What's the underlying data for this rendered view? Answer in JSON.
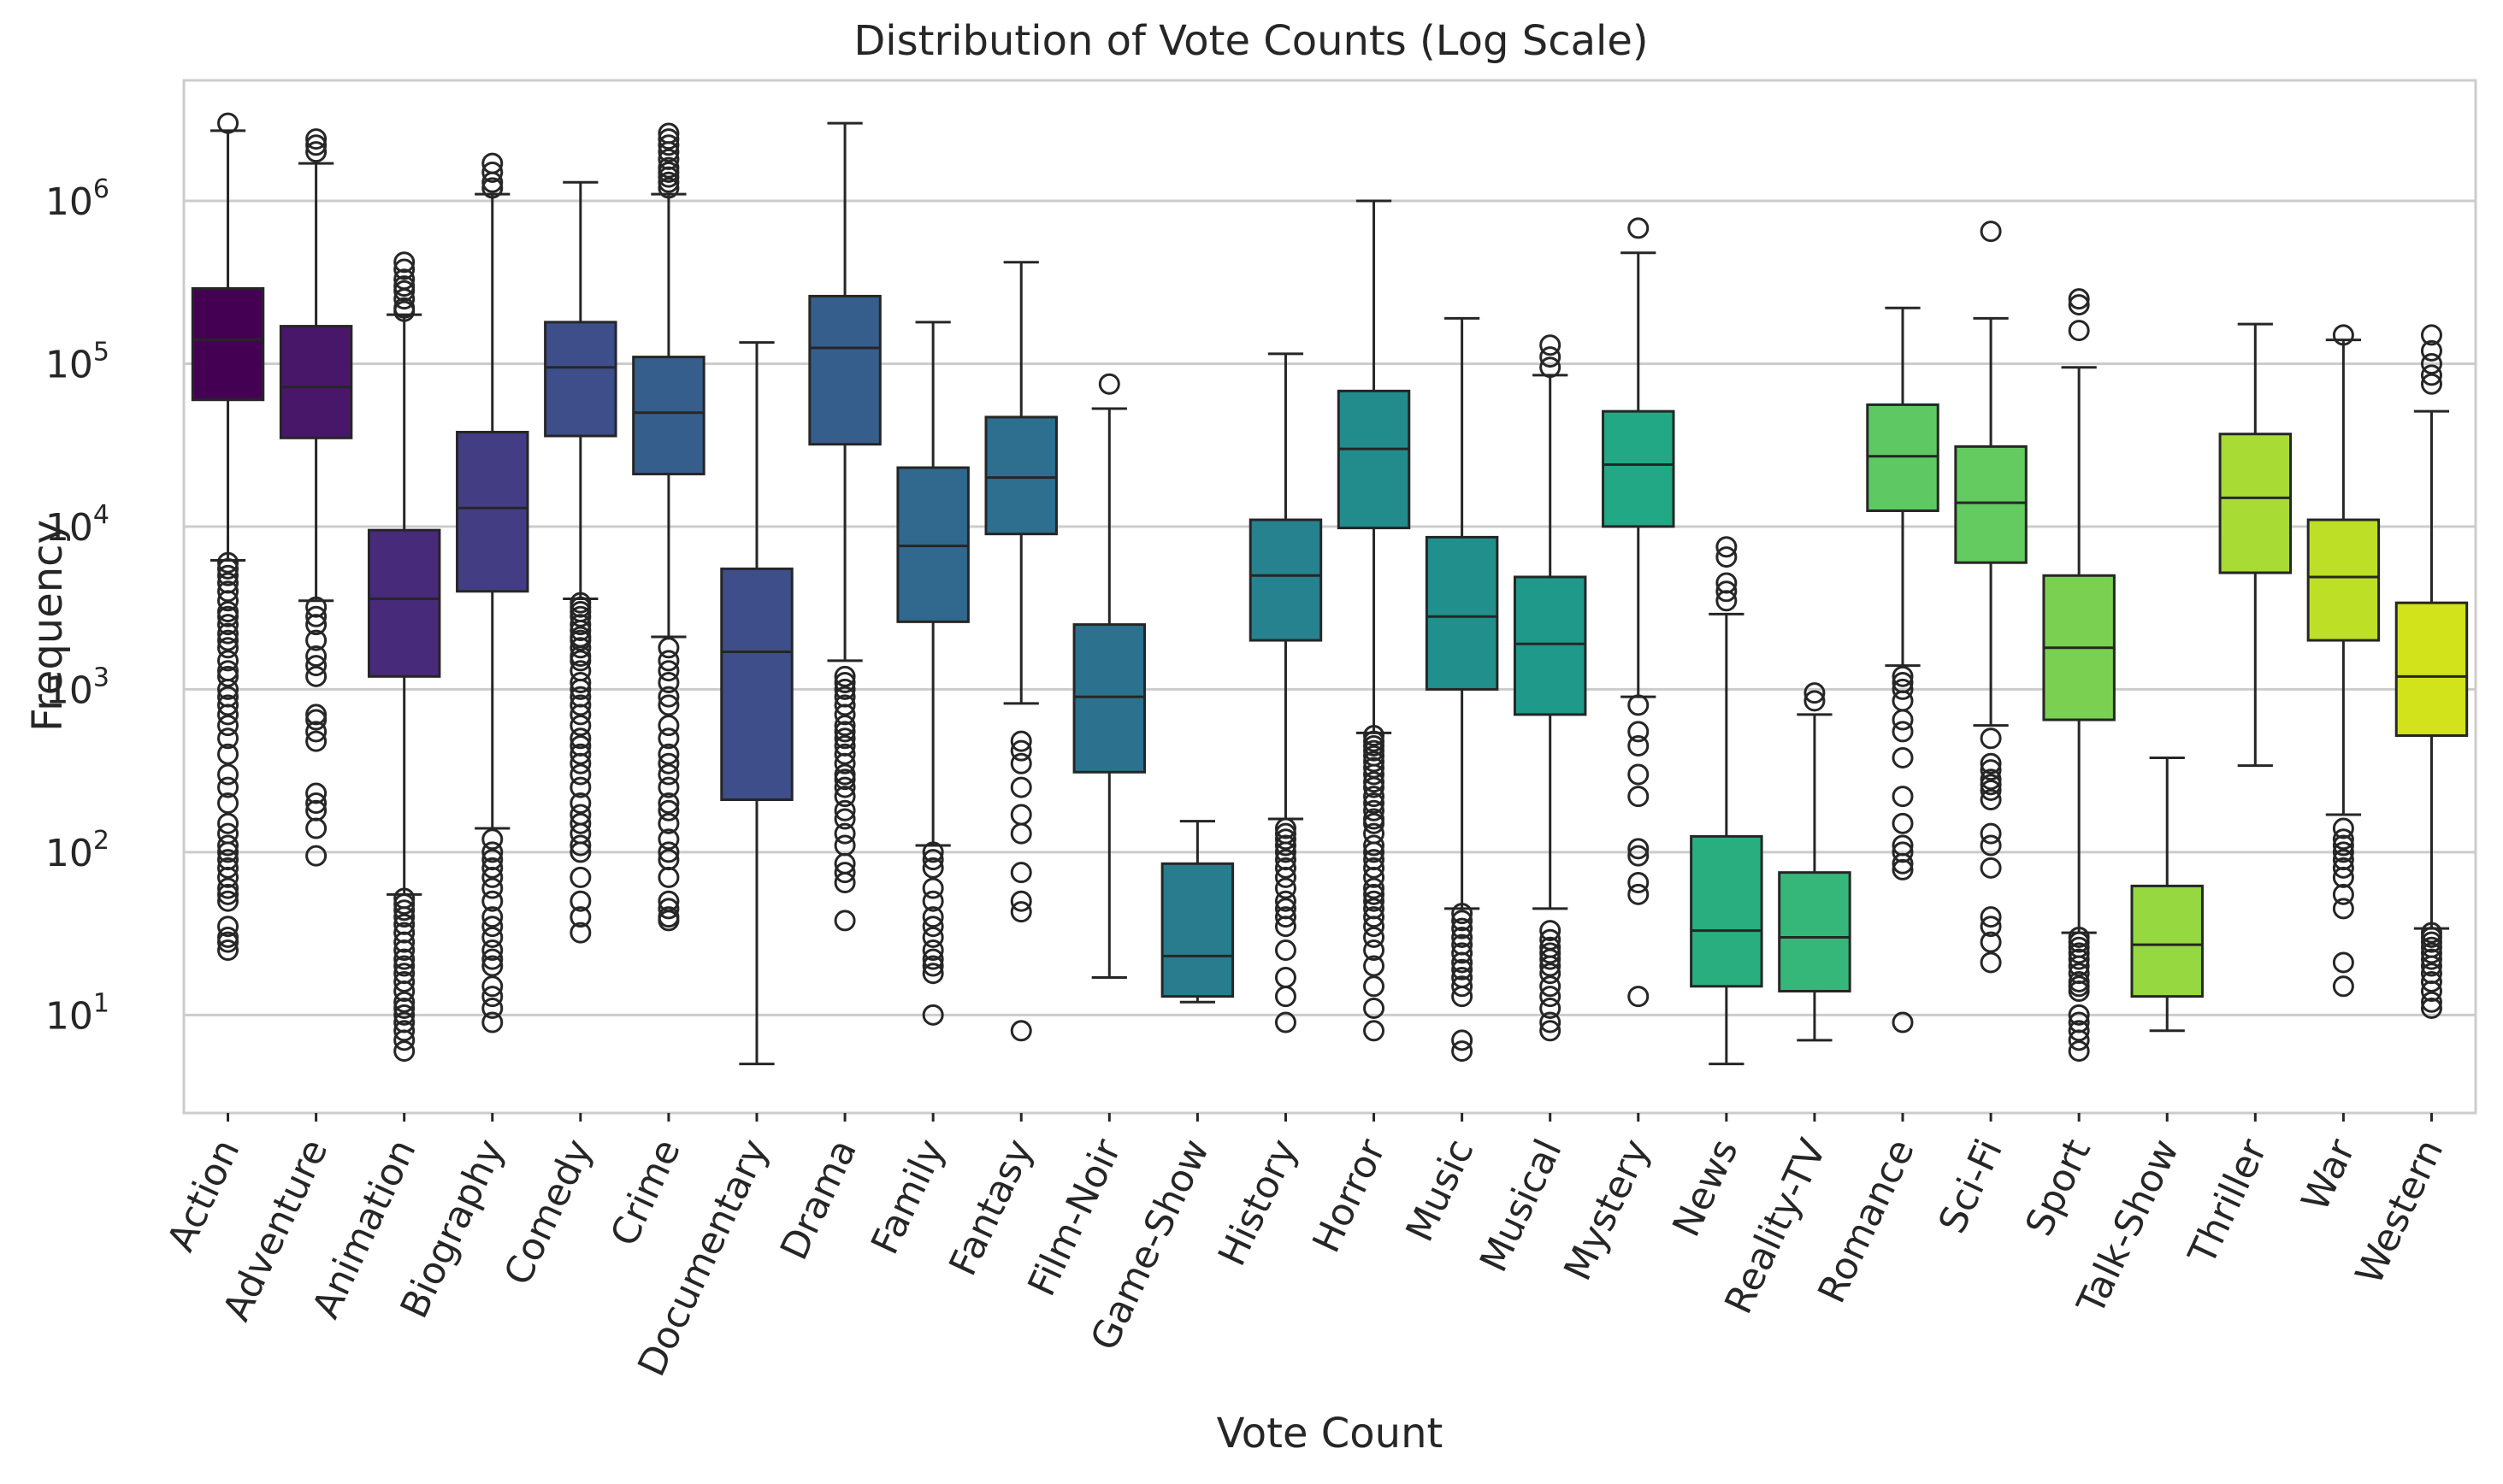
{
  "chart_data": {
    "type": "boxplot",
    "title": "Distribution of Vote Counts (Log Scale)",
    "xlabel": "Vote Count",
    "ylabel": "Frequency",
    "yscale": "log",
    "ylim": [
      2.5,
      5500000
    ],
    "yticks": [
      {
        "value": 10,
        "base": "10",
        "exp": "1"
      },
      {
        "value": 100,
        "base": "10",
        "exp": "2"
      },
      {
        "value": 1000,
        "base": "10",
        "exp": "3"
      },
      {
        "value": 10000,
        "base": "10",
        "exp": "4"
      },
      {
        "value": 100000,
        "base": "10",
        "exp": "5"
      },
      {
        "value": 1000000,
        "base": "10",
        "exp": "6"
      }
    ],
    "grid": true,
    "legend": "none",
    "categories": [
      "Action",
      "Adventure",
      "Animation",
      "Biography",
      "Comedy",
      "Crime",
      "Documentary",
      "Drama",
      "Family",
      "Fantasy",
      "Film-Noir",
      "Game-Show",
      "History",
      "Horror",
      "Music",
      "Musical",
      "Mystery",
      "News",
      "Reality-TV",
      "Romance",
      "Sci-Fi",
      "Sport",
      "Talk-Show",
      "Thriller",
      "War",
      "Western"
    ],
    "boxes": [
      {
        "category": "Action",
        "color": "#440154",
        "whisker_low": 6200,
        "q1": 60000,
        "median": 140000,
        "q3": 290000,
        "whisker_high": 2700000,
        "fliers": [
          3000000,
          6000,
          5500,
          5000,
          4500,
          4000,
          3500,
          3000,
          2800,
          2500,
          2200,
          2000,
          1800,
          1500,
          1300,
          1200,
          1000,
          900,
          800,
          700,
          600,
          500,
          400,
          300,
          250,
          200,
          150,
          130,
          110,
          100,
          90,
          80,
          70,
          60,
          55,
          50,
          35,
          30,
          28,
          25
        ]
      },
      {
        "category": "Adventure",
        "color": "#481769",
        "whisker_low": 3500,
        "q1": 35000,
        "median": 72000,
        "q3": 170000,
        "whisker_high": 1700000,
        "fliers": [
          2400000,
          2200000,
          2000000,
          3200,
          2800,
          2500,
          2000,
          1600,
          1400,
          1200,
          700,
          650,
          550,
          480,
          230,
          200,
          180,
          140,
          95
        ]
      },
      {
        "category": "Animation",
        "color": "#472a7a",
        "whisker_low": 55,
        "q1": 1200,
        "median": 3600,
        "q3": 9500,
        "whisker_high": 200000,
        "fliers": [
          420000,
          380000,
          330000,
          300000,
          280000,
          250000,
          220000,
          210000,
          52,
          48,
          44,
          40,
          36,
          32,
          28,
          25,
          22,
          20,
          18,
          16,
          14,
          12,
          11,
          10,
          9,
          8,
          7,
          6
        ]
      },
      {
        "category": "Biography",
        "color": "#433d84",
        "whisker_low": 140,
        "q1": 4000,
        "median": 13000,
        "q3": 38000,
        "whisker_high": 1100000,
        "fliers": [
          1700000,
          1500000,
          1300000,
          1200000,
          120,
          100,
          90,
          80,
          70,
          60,
          50,
          40,
          35,
          30,
          25,
          22,
          20,
          15,
          13,
          11,
          9
        ]
      },
      {
        "category": "Comedy",
        "color": "#3d4e8a",
        "whisker_low": 3600,
        "q1": 36000,
        "median": 95000,
        "q3": 180000,
        "whisker_high": 1300000,
        "fliers": [
          3400,
          3200,
          3000,
          2800,
          2500,
          2300,
          2100,
          2000,
          1800,
          1600,
          1500,
          1300,
          1100,
          1000,
          900,
          800,
          700,
          600,
          500,
          450,
          400,
          350,
          300,
          250,
          200,
          170,
          150,
          130,
          110,
          100,
          70,
          50,
          40,
          32
        ]
      },
      {
        "category": "Crime",
        "color": "#355e8d",
        "whisker_low": 2100,
        "q1": 21000,
        "median": 50000,
        "q3": 110000,
        "whisker_high": 1100000,
        "fliers": [
          2600000,
          2400000,
          2200000,
          2000000,
          1800000,
          1600000,
          1500000,
          1400000,
          1300000,
          1200000,
          1800,
          1500,
          1300,
          1100,
          900,
          800,
          600,
          500,
          400,
          350,
          300,
          250,
          200,
          180,
          150,
          120,
          100,
          90,
          70,
          50,
          45,
          40,
          38
        ]
      },
      {
        "category": "Documentary",
        "color": "#3d4e8a",
        "whisker_low": 5,
        "q1": 210,
        "median": 1700,
        "q3": 5500,
        "whisker_high": 135000,
        "fliers": []
      },
      {
        "category": "Drama",
        "color": "#355e8d",
        "whisker_low": 1500,
        "q1": 32000,
        "median": 125000,
        "q3": 260000,
        "whisker_high": 3000000,
        "fliers": [
          1200,
          1100,
          1000,
          900,
          800,
          700,
          600,
          550,
          500,
          450,
          400,
          350,
          300,
          280,
          250,
          220,
          180,
          160,
          130,
          110,
          85,
          75,
          65,
          38
        ]
      },
      {
        "category": "Family",
        "color": "#31688e",
        "whisker_low": 110,
        "q1": 2600,
        "median": 7600,
        "q3": 23000,
        "whisker_high": 180000,
        "fliers": [
          100,
          90,
          80,
          60,
          50,
          40,
          35,
          30,
          25,
          22,
          20,
          18,
          10
        ]
      },
      {
        "category": "Fantasy",
        "color": "#2e6e8e",
        "whisker_low": 820,
        "q1": 9000,
        "median": 20000,
        "q3": 47000,
        "whisker_high": 420000,
        "fliers": [
          480,
          420,
          350,
          250,
          170,
          130,
          75,
          50,
          43,
          8
        ]
      },
      {
        "category": "Film-Noir",
        "color": "#2c728e",
        "whisker_low": 17,
        "q1": 310,
        "median": 900,
        "q3": 2500,
        "whisker_high": 53000,
        "fliers": [
          75000
        ]
      },
      {
        "category": "Game-Show",
        "color": "#287c8e",
        "whisker_low": 12,
        "q1": 13,
        "median": 23,
        "q3": 85,
        "whisker_high": 155,
        "fliers": []
      },
      {
        "category": "History",
        "color": "#26828e",
        "whisker_low": 160,
        "q1": 2000,
        "median": 5000,
        "q3": 11000,
        "whisker_high": 115000,
        "fliers": [
          140,
          130,
          120,
          110,
          100,
          90,
          80,
          70,
          60,
          50,
          45,
          40,
          35,
          25,
          17,
          13,
          9
        ]
      },
      {
        "category": "Horror",
        "color": "#228c8d",
        "whisker_low": 540,
        "q1": 9800,
        "median": 30000,
        "q3": 68000,
        "whisker_high": 1000000,
        "fliers": [
          520,
          480,
          450,
          420,
          390,
          360,
          330,
          300,
          270,
          250,
          220,
          200,
          180,
          160,
          150,
          130,
          110,
          100,
          90,
          80,
          70,
          60,
          55,
          50,
          45,
          40,
          35,
          30,
          25,
          20,
          15,
          11,
          8
        ]
      },
      {
        "category": "Music",
        "color": "#21908d",
        "whisker_low": 45,
        "q1": 1000,
        "median": 2800,
        "q3": 8600,
        "whisker_high": 190000,
        "fliers": [
          42,
          38,
          34,
          30,
          27,
          24,
          21,
          19,
          17,
          15,
          13,
          7,
          6
        ]
      },
      {
        "category": "Musical",
        "color": "#1f9a8a",
        "whisker_low": 45,
        "q1": 700,
        "median": 1900,
        "q3": 4900,
        "whisker_high": 85000,
        "fliers": [
          130000,
          110000,
          95000,
          33,
          29,
          26,
          24,
          22,
          20,
          18,
          15,
          13,
          11,
          9,
          8
        ]
      },
      {
        "category": "Mystery",
        "color": "#22a884",
        "whisker_low": 900,
        "q1": 10000,
        "median": 24000,
        "q3": 51000,
        "whisker_high": 480000,
        "fliers": [
          680000,
          800,
          550,
          450,
          300,
          220,
          105,
          95,
          65,
          55,
          13
        ]
      },
      {
        "category": "News",
        "color": "#29af7f",
        "whisker_low": 5,
        "q1": 15,
        "median": 33,
        "q3": 125,
        "whisker_high": 2900,
        "fliers": [
          7500,
          6500,
          4500,
          4000,
          3500
        ]
      },
      {
        "category": "Reality-TV",
        "color": "#35b779",
        "whisker_low": 7,
        "q1": 14,
        "median": 30,
        "q3": 75,
        "whisker_high": 700,
        "fliers": [
          950,
          850
        ]
      },
      {
        "category": "Romance",
        "color": "#5ec962",
        "whisker_low": 1400,
        "q1": 12500,
        "median": 27000,
        "q3": 56000,
        "whisker_high": 220000,
        "fliers": [
          1200,
          1100,
          1000,
          850,
          650,
          550,
          380,
          220,
          150,
          110,
          100,
          85,
          78,
          9
        ]
      },
      {
        "category": "Sci-Fi",
        "color": "#63cb5f",
        "whisker_low": 600,
        "q1": 6000,
        "median": 14000,
        "q3": 31000,
        "whisker_high": 190000,
        "fliers": [
          650000,
          500,
          350,
          320,
          280,
          260,
          240,
          210,
          130,
          110,
          80,
          40,
          35,
          28,
          21
        ]
      },
      {
        "category": "Sport",
        "color": "#7ad151",
        "whisker_low": 32,
        "q1": 650,
        "median": 1800,
        "q3": 5000,
        "whisker_high": 95000,
        "fliers": [
          250000,
          230000,
          160000,
          30,
          28,
          26,
          24,
          22,
          20,
          18,
          16,
          15,
          14,
          10,
          9,
          8,
          7,
          6
        ]
      },
      {
        "category": "Talk-Show",
        "color": "#95d840",
        "whisker_low": 8,
        "q1": 13,
        "median": 27,
        "q3": 62,
        "whisker_high": 380,
        "fliers": []
      },
      {
        "category": "Thriller",
        "color": "#a8db34",
        "whisker_low": 340,
        "q1": 5200,
        "median": 15000,
        "q3": 37000,
        "whisker_high": 175000,
        "fliers": []
      },
      {
        "category": "War",
        "color": "#bddf26",
        "whisker_low": 170,
        "q1": 2000,
        "median": 4900,
        "q3": 11000,
        "whisker_high": 140000,
        "fliers": [
          150000,
          140,
          120,
          110,
          100,
          90,
          80,
          70,
          55,
          45,
          21,
          15
        ]
      },
      {
        "category": "Western",
        "color": "#d2e21b",
        "whisker_low": 34,
        "q1": 520,
        "median": 1200,
        "q3": 3400,
        "whisker_high": 51000,
        "fliers": [
          150000,
          120000,
          100000,
          85000,
          75000,
          32,
          30,
          28,
          26,
          24,
          22,
          20,
          18,
          16,
          14,
          12,
          11
        ]
      }
    ]
  }
}
